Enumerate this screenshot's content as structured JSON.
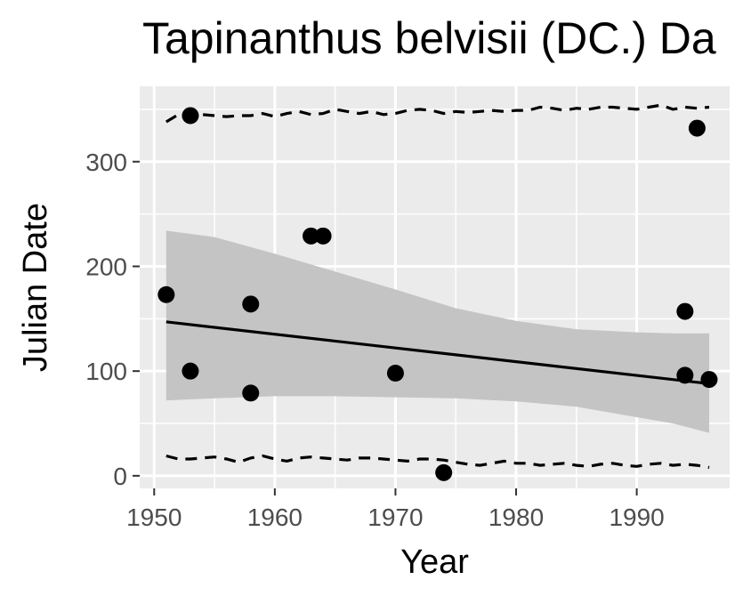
{
  "chart_data": {
    "type": "scatter",
    "title": "Tapinanthus belvisii (DC.) Da",
    "xlabel": "Year",
    "ylabel": "Julian Date",
    "xlim": [
      1948.8,
      1997.7
    ],
    "ylim": [
      -12,
      372
    ],
    "x_ticks": [
      1950,
      1960,
      1970,
      1980,
      1990
    ],
    "y_ticks": [
      0,
      100,
      200,
      300
    ],
    "x_tick_labels": [
      "1950",
      "1960",
      "1970",
      "1980",
      "1990"
    ],
    "y_tick_labels": [
      "0",
      "100",
      "200",
      "300"
    ],
    "grid": true,
    "legend": "none",
    "colors": {
      "panel": "#ebebeb",
      "grid": "#ffffff",
      "ribbon": "#c4c4c4",
      "points": "#000000",
      "line": "#000000"
    },
    "points": [
      {
        "x": 1951,
        "y": 173
      },
      {
        "x": 1953,
        "y": 344
      },
      {
        "x": 1953,
        "y": 100
      },
      {
        "x": 1958,
        "y": 164
      },
      {
        "x": 1958,
        "y": 79
      },
      {
        "x": 1963,
        "y": 229
      },
      {
        "x": 1964,
        "y": 229
      },
      {
        "x": 1970,
        "y": 98
      },
      {
        "x": 1974,
        "y": 3
      },
      {
        "x": 1994,
        "y": 157
      },
      {
        "x": 1994,
        "y": 96
      },
      {
        "x": 1995,
        "y": 332
      },
      {
        "x": 1996,
        "y": 92
      }
    ],
    "trend_line": {
      "x": [
        1951,
        1996
      ],
      "y": [
        147,
        88
      ]
    },
    "confidence_band": {
      "x": [
        1951,
        1955,
        1960,
        1965,
        1970,
        1975,
        1980,
        1985,
        1990,
        1993,
        1996
      ],
      "upper": [
        234,
        228,
        212,
        195,
        178,
        160,
        148,
        140,
        137,
        136,
        136
      ],
      "lower": [
        72,
        74,
        76,
        76,
        75,
        74,
        71,
        66,
        56,
        50,
        41
      ]
    },
    "upper_quantile": {
      "x": [
        1951,
        1952,
        1953,
        1954,
        1955,
        1956,
        1957,
        1958,
        1959,
        1960,
        1961,
        1962,
        1963,
        1964,
        1965,
        1966,
        1967,
        1968,
        1969,
        1970,
        1971,
        1972,
        1973,
        1974,
        1975,
        1976,
        1977,
        1978,
        1979,
        1980,
        1981,
        1982,
        1983,
        1984,
        1985,
        1986,
        1987,
        1988,
        1989,
        1990,
        1991,
        1992,
        1993,
        1994,
        1995,
        1996
      ],
      "y": [
        338,
        345,
        343,
        345,
        344,
        343,
        344,
        344,
        346,
        343,
        346,
        348,
        345,
        346,
        350,
        348,
        346,
        348,
        345,
        346,
        349,
        350,
        349,
        346,
        348,
        347,
        348,
        349,
        348,
        349,
        349,
        352,
        351,
        349,
        351,
        350,
        352,
        352,
        351,
        350,
        352,
        354,
        350,
        352,
        351,
        352
      ]
    },
    "lower_quantile": {
      "x": [
        1951,
        1952,
        1953,
        1954,
        1955,
        1956,
        1957,
        1958,
        1959,
        1960,
        1961,
        1962,
        1963,
        1964,
        1965,
        1966,
        1967,
        1968,
        1969,
        1970,
        1971,
        1972,
        1973,
        1974,
        1975,
        1976,
        1977,
        1978,
        1979,
        1980,
        1981,
        1982,
        1983,
        1984,
        1985,
        1986,
        1987,
        1988,
        1989,
        1990,
        1991,
        1992,
        1993,
        1994,
        1995,
        1996
      ],
      "y": [
        19,
        16,
        16,
        17,
        18,
        16,
        13,
        17,
        19,
        16,
        14,
        17,
        18,
        17,
        16,
        15,
        17,
        17,
        16,
        15,
        14,
        16,
        16,
        15,
        13,
        11,
        10,
        12,
        14,
        12,
        12,
        10,
        11,
        12,
        10,
        9,
        11,
        12,
        10,
        9,
        11,
        12,
        10,
        11,
        10,
        8
      ]
    }
  }
}
